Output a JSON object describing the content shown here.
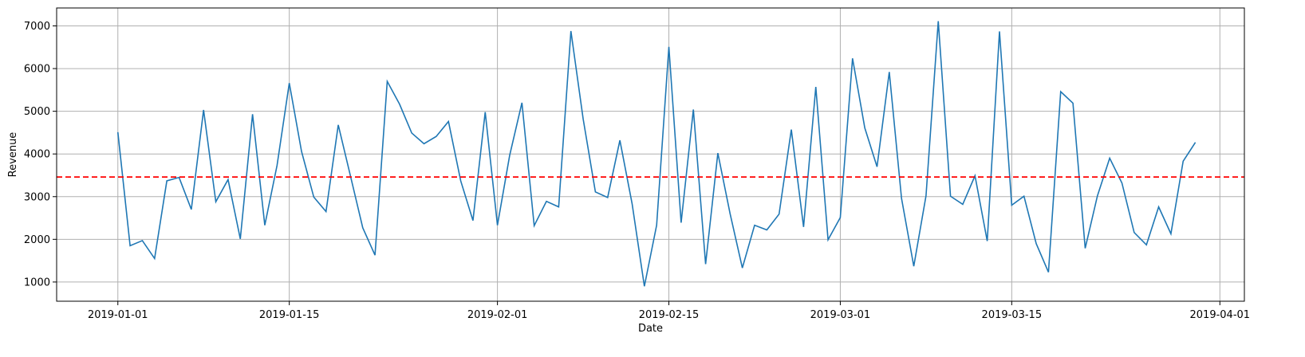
{
  "chart_data": {
    "type": "line",
    "xlabel": "Date",
    "ylabel": "Revenue",
    "x_start": "2019-01-01",
    "xlim": [
      "2018-12-27",
      "2019-04-03"
    ],
    "ylim": [
      550,
      7420
    ],
    "grid": true,
    "x_ticks": [
      "2019-01-01",
      "2019-01-15",
      "2019-02-01",
      "2019-02-15",
      "2019-03-01",
      "2019-03-15",
      "2019-04-01"
    ],
    "y_ticks": [
      1000,
      2000,
      3000,
      4000,
      5000,
      6000,
      7000
    ],
    "series": [
      {
        "color": "#1f77b4",
        "values": [
          4510,
          1850,
          1970,
          1550,
          3370,
          3450,
          2700,
          5030,
          2880,
          3400,
          2010,
          4930,
          2330,
          3730,
          5660,
          4060,
          2990,
          2650,
          4680,
          3480,
          2270,
          1630,
          5700,
          5170,
          4490,
          4240,
          4410,
          4760,
          3370,
          2440,
          4980,
          2330,
          3970,
          5200,
          2320,
          2890,
          2760,
          6880,
          4820,
          3110,
          2980,
          4320,
          2830,
          900,
          2330,
          6510,
          2390,
          5040,
          1420,
          4020,
          2600,
          1330,
          2330,
          2220,
          2590,
          4570,
          2290,
          5570,
          1990,
          2510,
          6240,
          4610,
          3700,
          5920,
          2960,
          1370,
          3020,
          7110,
          3010,
          2820,
          3490,
          1960,
          6870,
          2800,
          3010,
          1900,
          1230,
          5460,
          5190,
          1790,
          3020,
          3900,
          3320,
          2160,
          1870,
          2760,
          2130,
          3830,
          4270
        ]
      }
    ],
    "reference_line": {
      "value": 3460,
      "color": "#ff0000",
      "style": "dashed"
    }
  }
}
